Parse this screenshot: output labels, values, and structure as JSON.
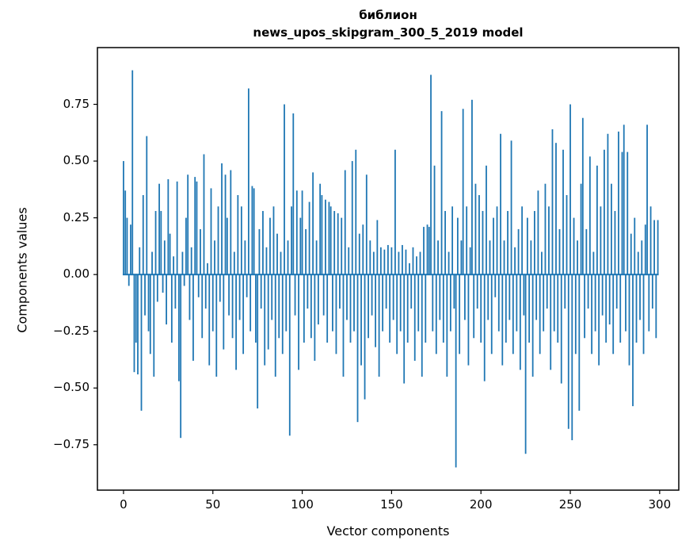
{
  "title": {
    "line1": "библион",
    "line2": "news_upos_skipgram_300_5_2019 model"
  },
  "axes": {
    "xlabel": "Vector components",
    "ylabel": "Components values"
  },
  "chart_data": {
    "type": "bar",
    "title": "библион — news_upos_skipgram_300_5_2019 model",
    "xlabel": "Vector components",
    "ylabel": "Components values",
    "bar_color": "#1f77b4",
    "grid": false,
    "legend": "none",
    "xlim": [
      -14.6,
      310.7
    ],
    "ylim": [
      -0.95,
      1.0
    ],
    "x_ticks": [
      0,
      50,
      100,
      150,
      200,
      250,
      300
    ],
    "x_tick_labels": [
      "0",
      "50",
      "100",
      "150",
      "200",
      "250",
      "300"
    ],
    "y_ticks": [
      -0.75,
      -0.5,
      -0.25,
      0,
      0.25,
      0.5,
      0.75
    ],
    "y_tick_labels": [
      "−0.75",
      "−0.50",
      "−0.25",
      "0.00",
      "0.25",
      "0.50",
      "0.75"
    ],
    "values": [
      0.5,
      0.37,
      0.25,
      -0.05,
      0.22,
      0.9,
      -0.43,
      -0.3,
      -0.44,
      0.12,
      -0.6,
      0.35,
      -0.18,
      0.61,
      -0.25,
      -0.35,
      0.1,
      -0.45,
      0.28,
      -0.12,
      0.4,
      0.28,
      -0.08,
      0.15,
      -0.22,
      0.42,
      0.18,
      -0.3,
      0.08,
      -0.15,
      0.41,
      -0.47,
      -0.72,
      0.1,
      -0.05,
      0.25,
      0.44,
      -0.2,
      0.12,
      -0.38,
      0.43,
      0.41,
      -0.1,
      0.2,
      -0.28,
      0.53,
      -0.15,
      0.05,
      -0.4,
      0.38,
      -0.25,
      0.15,
      -0.45,
      0.3,
      -0.12,
      0.49,
      -0.33,
      0.44,
      0.25,
      -0.18,
      0.46,
      -0.28,
      0.1,
      -0.42,
      0.35,
      -0.2,
      0.3,
      -0.35,
      0.15,
      -0.1,
      0.82,
      -0.25,
      0.39,
      0.38,
      -0.3,
      -0.59,
      0.2,
      -0.15,
      0.28,
      -0.4,
      0.12,
      -0.33,
      0.25,
      -0.2,
      0.3,
      -0.45,
      0.18,
      -0.28,
      0.1,
      -0.35,
      0.75,
      -0.25,
      0.15,
      -0.71,
      0.3,
      0.71,
      -0.18,
      0.37,
      -0.42,
      0.25,
      0.37,
      -0.3,
      0.2,
      -0.15,
      0.32,
      -0.28,
      0.45,
      -0.38,
      0.15,
      -0.22,
      0.4,
      0.35,
      -0.18,
      0.33,
      -0.3,
      0.32,
      0.3,
      -0.25,
      0.28,
      -0.35,
      0.27,
      -0.15,
      0.25,
      -0.45,
      0.46,
      -0.2,
      0.12,
      -0.3,
      0.5,
      -0.25,
      0.55,
      -0.65,
      0.18,
      -0.4,
      0.22,
      -0.55,
      0.44,
      -0.28,
      0.15,
      -0.18,
      0.1,
      -0.32,
      0.24,
      -0.45,
      0.12,
      -0.25,
      0.11,
      -0.15,
      0.13,
      -0.3,
      0.12,
      -0.2,
      0.55,
      -0.35,
      0.1,
      -0.25,
      0.13,
      -0.48,
      0.11,
      -0.3,
      0.05,
      -0.15,
      0.12,
      -0.38,
      0.08,
      -0.25,
      0.1,
      -0.45,
      0.21,
      -0.3,
      0.22,
      0.21,
      0.88,
      -0.25,
      0.48,
      -0.35,
      0.15,
      -0.2,
      0.72,
      -0.3,
      0.28,
      -0.45,
      0.1,
      -0.25,
      0.3,
      -0.15,
      -0.85,
      0.25,
      -0.35,
      0.15,
      0.73,
      -0.2,
      0.3,
      -0.4,
      0.12,
      0.77,
      -0.28,
      0.4,
      -0.15,
      0.35,
      -0.3,
      0.28,
      -0.47,
      0.48,
      -0.2,
      0.15,
      -0.35,
      0.25,
      -0.1,
      0.3,
      -0.25,
      0.62,
      -0.4,
      0.15,
      -0.3,
      0.28,
      -0.2,
      0.59,
      -0.35,
      0.12,
      -0.25,
      0.2,
      -0.42,
      0.3,
      -0.18,
      -0.79,
      0.25,
      -0.3,
      0.15,
      -0.45,
      0.28,
      -0.2,
      0.37,
      -0.35,
      0.1,
      -0.25,
      0.4,
      -0.15,
      0.3,
      -0.42,
      0.64,
      -0.25,
      0.58,
      -0.3,
      0.2,
      -0.48,
      0.55,
      -0.15,
      0.35,
      -0.68,
      0.75,
      -0.73,
      0.25,
      -0.35,
      0.15,
      -0.6,
      0.4,
      0.69,
      -0.28,
      0.2,
      -0.15,
      0.52,
      -0.35,
      0.1,
      -0.25,
      0.48,
      -0.4,
      0.3,
      -0.18,
      0.55,
      -0.3,
      0.62,
      -0.22,
      0.4,
      -0.35,
      0.28,
      -0.15,
      0.63,
      -0.3,
      0.54,
      0.66,
      -0.25,
      0.54,
      -0.4,
      0.18,
      -0.58,
      0.25,
      -0.3,
      0.1,
      -0.2,
      0.15,
      -0.35,
      0.22,
      0.66,
      -0.25,
      0.3,
      -0.15,
      0.24,
      -0.28,
      0.24
    ]
  }
}
